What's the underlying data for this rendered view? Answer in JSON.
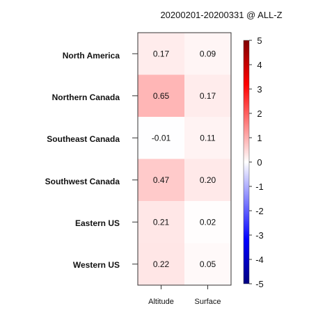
{
  "chart_data": {
    "type": "heatmap",
    "title": "20200201-20200331 @ ALL-Z",
    "rows": [
      "North America",
      "Northern Canada",
      "Southeast Canada",
      "Southwest Canada",
      "Eastern US",
      "Western US"
    ],
    "columns": [
      "Altitude",
      "Surface"
    ],
    "values": [
      [
        0.17,
        0.09
      ],
      [
        0.65,
        0.17
      ],
      [
        -0.01,
        0.11
      ],
      [
        0.47,
        0.2
      ],
      [
        0.21,
        0.02
      ],
      [
        0.22,
        0.05
      ]
    ],
    "cell_labels": [
      [
        "0.17",
        "0.09"
      ],
      [
        "0.65",
        "0.17"
      ],
      [
        "-0.01",
        "0.11"
      ],
      [
        "0.47",
        "0.20"
      ],
      [
        "0.21",
        "0.02"
      ],
      [
        "0.22",
        "0.05"
      ]
    ],
    "colorbar": {
      "range": [
        -5,
        5
      ],
      "ticks": [
        "5",
        "4",
        "3",
        "2",
        "1",
        "0",
        "-1",
        "-2",
        "-3",
        "-4",
        "-5"
      ],
      "low_color": "#000080",
      "mid_color": "#ffffff",
      "high_color": "#800000"
    }
  }
}
